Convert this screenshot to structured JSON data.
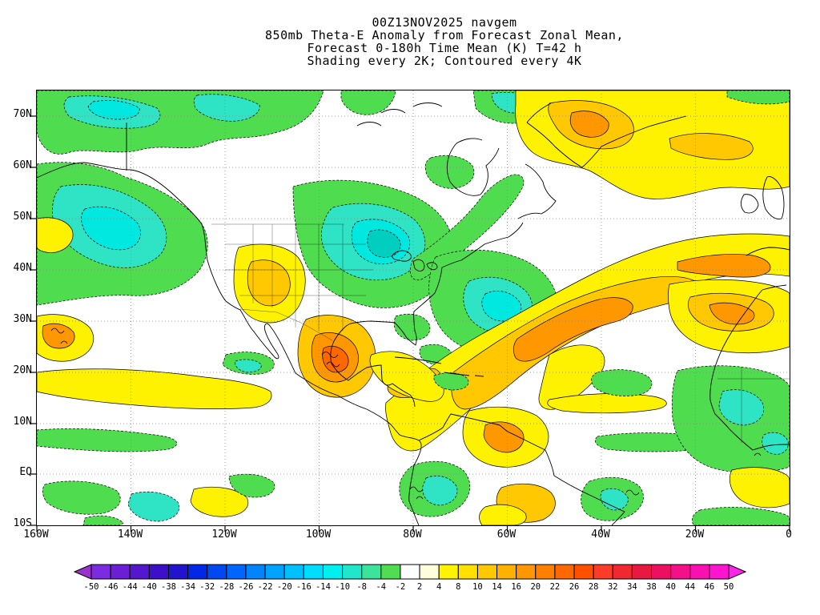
{
  "titles": {
    "line1": "00Z13NOV2025 navgem",
    "line2": "850mb Theta-E Anomaly from Forecast Zonal Mean,",
    "line3": "Forecast 0-180h Time Mean (K) T=42 h",
    "line4": "Shading every 2K; Contoured every 4K"
  },
  "axes": {
    "lat_labels": [
      "70N",
      "60N",
      "50N",
      "40N",
      "30N",
      "20N",
      "10N",
      "EQ",
      "10S"
    ],
    "lon_labels": [
      "160W",
      "140W",
      "120W",
      "100W",
      "80W",
      "60W",
      "40W",
      "20W",
      "0"
    ]
  },
  "colorbar": {
    "labels": [
      "-50",
      "-46",
      "-44",
      "-40",
      "-38",
      "-34",
      "-32",
      "-28",
      "-26",
      "-22",
      "-20",
      "-16",
      "-14",
      "-10",
      "-8",
      "-4",
      "-2",
      "2",
      "4",
      "8",
      "10",
      "14",
      "16",
      "20",
      "22",
      "26",
      "28",
      "32",
      "34",
      "38",
      "40",
      "44",
      "46",
      "50"
    ],
    "arrow_left_color": "#9932CC",
    "arrow_right_color": "#FF22E8",
    "cell_colors": [
      "#7B2BE2",
      "#6A1FD6",
      "#5517CE",
      "#3C10C8",
      "#2014CF",
      "#0028E6",
      "#0048F0",
      "#0066FF",
      "#0084FF",
      "#00A2FF",
      "#00C0FF",
      "#00DCFF",
      "#00F0F0",
      "#20E6CC",
      "#3CE39A",
      "#52DC52",
      "#FFFFFF",
      "#FFFFDC",
      "#FFF400",
      "#FFE000",
      "#FFC800",
      "#FFB000",
      "#FF9800",
      "#FF8000",
      "#FF6800",
      "#FF5000",
      "#FA3C28",
      "#F02830",
      "#E81840",
      "#EE1060",
      "#F41088",
      "#FA10B0",
      "#FF14D0"
    ]
  },
  "map_palette": {
    "green_negative": "#4FDC4F",
    "turquoise_negative": "#2EE4C4",
    "cyan_negative_core": "#00E8E0",
    "yellow_positive": "#FFF200",
    "gold_positive": "#FFC800",
    "orange_positive": "#FF9800",
    "deep_orange_core": "#FF6800"
  },
  "chart_data": {
    "type": "heatmap",
    "title": "850mb Theta-E Anomaly from Forecast Zonal Mean (K)",
    "model_run": "00Z13NOV2025 navgem",
    "forecast": "Forecast 0-180h Time Mean, T=42 h",
    "units": "K",
    "shading_interval": "2K",
    "contour_interval": "4K",
    "contour_style": {
      "negative": "dashed black",
      "positive": "solid black"
    },
    "x_ticks": [
      "160W",
      "140W",
      "120W",
      "100W",
      "80W",
      "60W",
      "40W",
      "20W",
      "0"
    ],
    "y_ticks": [
      "70N",
      "60N",
      "50N",
      "40N",
      "30N",
      "20N",
      "10N",
      "EQ",
      "10S"
    ],
    "lon_range": [
      "160W",
      "0"
    ],
    "lat_range": [
      "10S",
      "70N"
    ],
    "grid": true,
    "legend_position": "bottom",
    "colorbar_levels": [
      -50,
      -46,
      -44,
      -40,
      -38,
      -34,
      -32,
      -28,
      -26,
      -22,
      -20,
      -16,
      -14,
      -10,
      -8,
      -4,
      -2,
      2,
      4,
      8,
      10,
      14,
      16,
      20,
      22,
      26,
      28,
      32,
      34,
      38,
      40,
      44,
      46,
      50
    ],
    "anomaly_centers": [
      {
        "lon": "90W",
        "lat": "45N",
        "value_K": -14,
        "description": "negative theta-e anomaly over central North America"
      },
      {
        "lon": "65W",
        "lat": "35N",
        "value_K": -10,
        "description": "negative anomaly over western North Atlantic"
      },
      {
        "lon": "140W",
        "lat": "50N",
        "value_K": -10,
        "description": "negative anomaly over NE Pacific"
      },
      {
        "lon": "10W",
        "lat": "8N",
        "value_K": -8,
        "description": "negative anomaly over West Africa"
      },
      {
        "lon": "100W",
        "lat": "22N",
        "value_K": 26,
        "description": "strong positive anomaly over Mexico"
      },
      {
        "lon": "45W",
        "lat": "40N",
        "value_K": 22,
        "description": "positive anomaly band across central North Atlantic"
      },
      {
        "lon": "15W",
        "lat": "28N",
        "value_K": 18,
        "description": "positive anomaly near NW Africa"
      },
      {
        "lon": "30W",
        "lat": "67N",
        "value_K": 12,
        "description": "positive anomaly in far North Atlantic"
      },
      {
        "lon": "140W",
        "lat": "18N",
        "value_K": 6,
        "description": "positive band across subtropical Pacific"
      }
    ]
  }
}
